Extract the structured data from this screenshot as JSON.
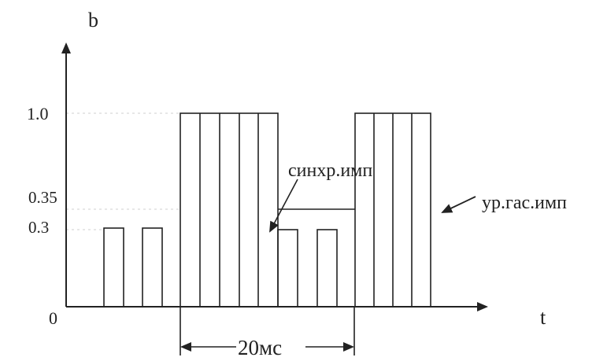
{
  "axes": {
    "y_label": "b",
    "x_label": "t",
    "y_ticks": [
      {
        "value": 0,
        "label": "0"
      },
      {
        "value": 0.3,
        "label": "0.3"
      },
      {
        "value": 0.35,
        "label": "0.35"
      },
      {
        "value": 1.0,
        "label": "1.0"
      }
    ]
  },
  "annotations": {
    "sync_pulse": "синхр.имп",
    "blanking_level": "ур.гас.имп",
    "period": "20мс"
  },
  "waveform": {
    "blanking_level": 0.35,
    "low_pulse_level": 0.3,
    "high_level": 1.0,
    "low_pulses_1": 2,
    "high_bars_1": 5,
    "low_pulses_2": 2,
    "high_bars_2": 4
  }
}
